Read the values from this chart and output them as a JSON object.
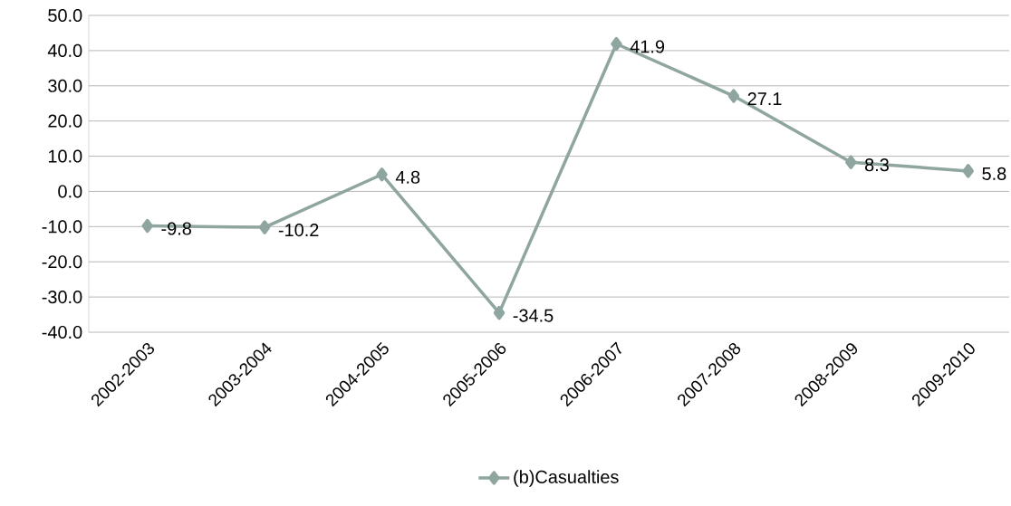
{
  "chart_data": {
    "type": "line",
    "categories": [
      "2002-2003",
      "2003-2004",
      "2004-2005",
      "2005-2006",
      "2006-2007",
      "2007-2008",
      "2008-2009",
      "2009-2010"
    ],
    "series": [
      {
        "name": "(b)Casualties",
        "color": "#8fa5a0",
        "values": [
          -9.8,
          -10.2,
          4.8,
          -34.5,
          41.9,
          27.1,
          8.3,
          5.8
        ]
      }
    ],
    "ylim": [
      -40,
      50
    ],
    "yticks": [
      {
        "value": -40,
        "label": "-40.0"
      },
      {
        "value": -30,
        "label": "-30.0"
      },
      {
        "value": -20,
        "label": "-20.0"
      },
      {
        "value": -10,
        "label": "-10.0"
      },
      {
        "value": 0,
        "label": "0.0"
      },
      {
        "value": 10,
        "label": "10.0"
      },
      {
        "value": 20,
        "label": "20.0"
      },
      {
        "value": 30,
        "label": "30.0"
      },
      {
        "value": 40,
        "label": "40.0"
      },
      {
        "value": 50,
        "label": "50.0"
      }
    ],
    "grid": "y",
    "legend": "bottom",
    "marker": "diamond",
    "line_style": "solid",
    "data_labels": true
  }
}
